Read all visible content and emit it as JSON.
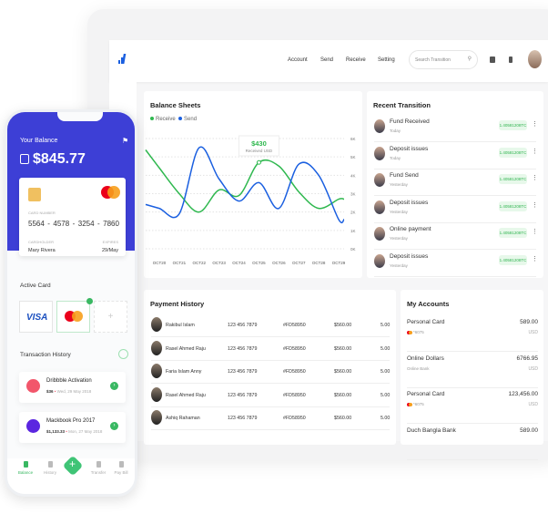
{
  "header": {
    "nav": [
      "Account",
      "Send",
      "Receive",
      "Setting"
    ],
    "search_placeholder": "Search Transition"
  },
  "balance_sheets": {
    "title": "Balance Sheets",
    "tooltip_value": "$430",
    "tooltip_label": "Received USD"
  },
  "chart_data": {
    "type": "line",
    "title": "Balance Sheets",
    "categories": [
      "OCT20",
      "OCT21",
      "OCT22",
      "OCT23",
      "OCT24",
      "OCT25",
      "OCT26",
      "OCT27",
      "OCT28",
      "OCT29"
    ],
    "y_ticks": [
      "0K",
      "1K",
      "2K",
      "3K",
      "4K",
      "5K",
      "6K"
    ],
    "ylim": [
      0,
      6000
    ],
    "grid": true,
    "legend": "top-left",
    "series": [
      {
        "name": "Receive",
        "color": "#2fb84f",
        "values": [
          4400,
          3000,
          2000,
          3200,
          2900,
          4700,
          4500,
          3100,
          2200,
          2700
        ]
      },
      {
        "name": "Send",
        "color": "#1a5fe0",
        "values": [
          2200,
          1900,
          5500,
          3800,
          2600,
          3600,
          2200,
          4600,
          4000,
          1600
        ]
      }
    ]
  },
  "recent": {
    "title": "Recent Transition",
    "items": [
      {
        "title": "Fund Received",
        "sub": "Today",
        "amount": "1.40581208TC"
      },
      {
        "title": "Deposit issues",
        "sub": "Today",
        "amount": "1.40581208TC"
      },
      {
        "title": "Fund Send",
        "sub": "Yesterday",
        "amount": "1.40581208TC"
      },
      {
        "title": "Deposit issues",
        "sub": "Yesterday",
        "amount": "1.40581208TC"
      },
      {
        "title": "Online payment",
        "sub": "Yesterday",
        "amount": "1.40581208TC"
      },
      {
        "title": "Deposit issues",
        "sub": "Yesterday",
        "amount": "1.40581208TC"
      }
    ]
  },
  "payment": {
    "title": "Payment History",
    "rows": [
      {
        "name": "Rakibul Islam",
        "phone": "123 456 7879",
        "id": "#FD58950",
        "amount": "$560.00",
        "extra": "5.00"
      },
      {
        "name": "Rasel Ahmed Raju",
        "phone": "123 456 7879",
        "id": "#FD58950",
        "amount": "$560.00",
        "extra": "5.00"
      },
      {
        "name": "Faria Islam Anny",
        "phone": "123 456 7879",
        "id": "#FD58950",
        "amount": "$560.00",
        "extra": "5.00"
      },
      {
        "name": "Rasel Ahmed Raju",
        "phone": "123 456 7879",
        "id": "#FD58950",
        "amount": "$560.00",
        "extra": "5.00"
      },
      {
        "name": "Ashiq Rahaman",
        "phone": "123 456 7879",
        "id": "#FD58950",
        "amount": "$560.00",
        "extra": "5.00"
      }
    ]
  },
  "accounts": {
    "title": "My Accounts",
    "items": [
      {
        "name": "Personal Card",
        "sub": "*6075",
        "value": "589.00",
        "unit": "USD"
      },
      {
        "name": "Online Dollars",
        "sub": "Online Bank",
        "value": "6766.95",
        "unit": "USD"
      },
      {
        "name": "Personal Card",
        "sub": "*6075",
        "value": "123,456.00",
        "unit": "USD"
      },
      {
        "name": "Duch Bangla Bank",
        "sub": "",
        "value": "589.00",
        "unit": ""
      }
    ]
  },
  "phone": {
    "balance_label": "Your Balance",
    "balance": "$845.77",
    "card_number_label": "CARD NUMBER",
    "card_number": [
      "5564",
      "4578",
      "3254",
      "7860"
    ],
    "holder_label": "CARDHOLDER",
    "holder": "Mary Rivera",
    "expires_label": "EXPIRES",
    "expires": "29/May",
    "mastercard": "MasterCard",
    "active_card": "Active Card",
    "visa": "VISA",
    "transaction_history": "Transaction History",
    "transactions": [
      {
        "title": "Dribbble Activation",
        "amount": "$36",
        "date": "Wed, 29 May 2018",
        "color": "#f2566b"
      },
      {
        "title": "Mackbook Pro 2017",
        "amount": "$1,133.33",
        "date": "Mon, 27 May 2018",
        "color": "#5b26e0"
      }
    ],
    "tabs": [
      "Balance",
      "History",
      "Transfer",
      "Pay Bill"
    ]
  }
}
